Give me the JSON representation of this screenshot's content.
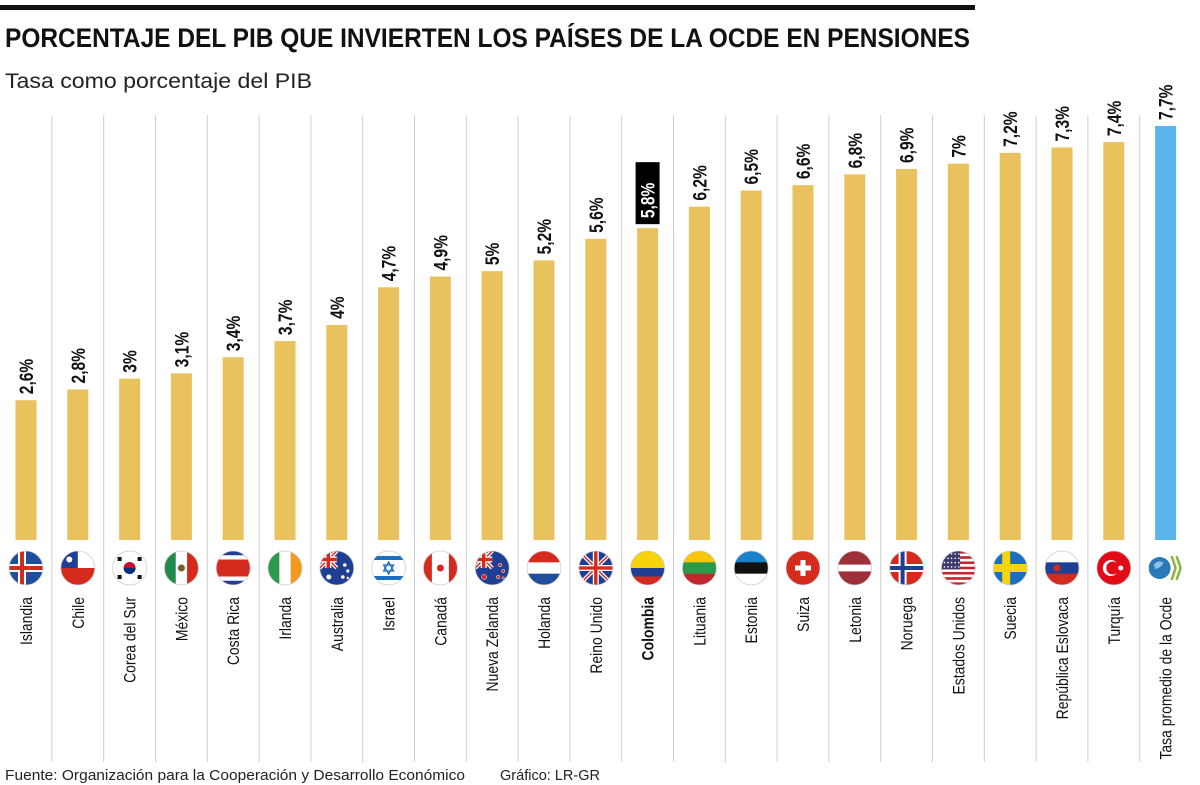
{
  "chart_data": {
    "type": "bar",
    "title": "PORCENTAJE DEL PIB QUE INVIERTEN LOS PAÍSES DE LA OCDE EN PENSIONES",
    "subtitle": "Tasa como porcentaje del PIB",
    "xlabel": "",
    "ylabel": "",
    "ylim": [
      0,
      7.7
    ],
    "grid": false,
    "legend": "none",
    "categories": [
      "Islandia",
      "Chile",
      "Corea del Sur",
      "México",
      "Costa Rica",
      "Irlanda",
      "Australia",
      "Israel",
      "Canadá",
      "Nueva Zelanda",
      "Holanda",
      "Reino Unido",
      "Colombia",
      "Lituania",
      "Estonia",
      "Suiza",
      "Letonia",
      "Noruega",
      "Estados Unidos",
      "Suecia",
      "República Eslovaca",
      "Turquía",
      "Tasa promedio de la Ocde"
    ],
    "values": [
      2.6,
      2.8,
      3.0,
      3.1,
      3.4,
      3.7,
      4.0,
      4.7,
      4.9,
      5.0,
      5.2,
      5.6,
      5.8,
      6.2,
      6.5,
      6.6,
      6.8,
      6.9,
      7.0,
      7.2,
      7.3,
      7.4,
      7.7
    ],
    "data_labels": [
      "2,6%",
      "2,8%",
      "3%",
      "3,1%",
      "3,4%",
      "3,7%",
      "4%",
      "4,7%",
      "4,9%",
      "5%",
      "5,2%",
      "5,6%",
      "5,8%",
      "6,2%",
      "6,5%",
      "6,6%",
      "6,8%",
      "6,9%",
      "7%",
      "7,2%",
      "7,3%",
      "7,4%",
      "7,7%"
    ],
    "icons": [
      "flag-iceland-icon",
      "flag-chile-icon",
      "flag-south-korea-icon",
      "flag-mexico-icon",
      "flag-costa-rica-icon",
      "flag-ireland-icon",
      "flag-australia-icon",
      "flag-israel-icon",
      "flag-canada-icon",
      "flag-new-zealand-icon",
      "flag-netherlands-icon",
      "flag-uk-icon",
      "flag-colombia-icon",
      "flag-lithuania-icon",
      "flag-estonia-icon",
      "flag-switzerland-icon",
      "flag-latvia-icon",
      "flag-norway-icon",
      "flag-usa-icon",
      "flag-sweden-icon",
      "flag-slovakia-icon",
      "flag-turkey-icon",
      "ocde-logo-icon"
    ],
    "highlight": "Colombia",
    "colors": {
      "bar": "#E9C25E",
      "average_bar": "#5CB5E8",
      "highlight_label_bg": "#000000"
    }
  },
  "footer": {
    "source": "Fuente: Organización para la Cooperación y Desarrollo Económico",
    "credit": "Gráfico: LR-GR"
  }
}
